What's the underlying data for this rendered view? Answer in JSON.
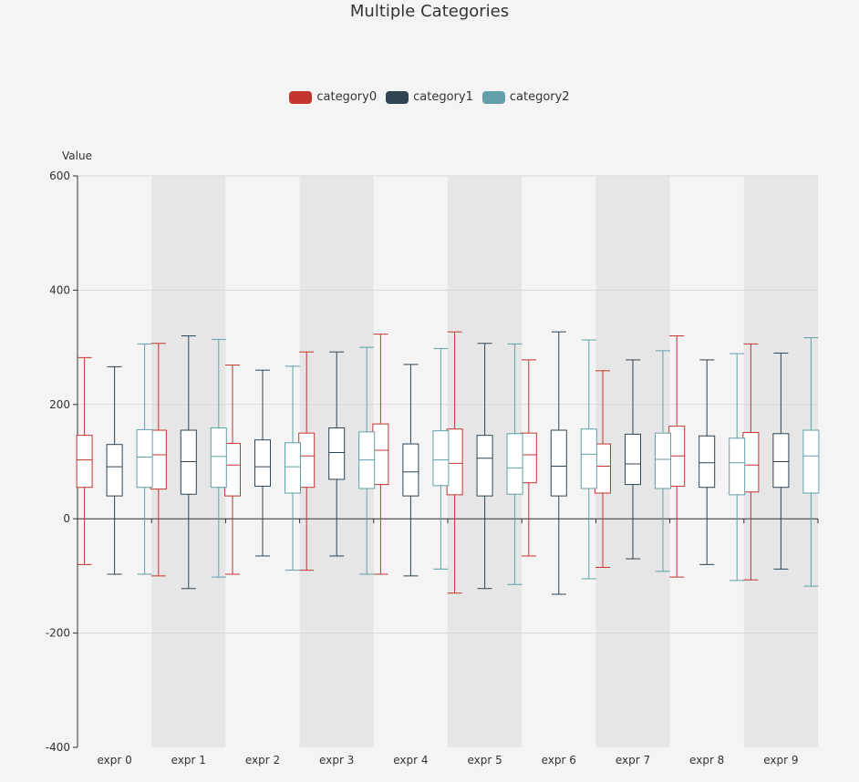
{
  "chart_data": {
    "type": "boxplot",
    "title": "Multiple Categories",
    "ylabel": "Value",
    "xlabel": "",
    "ylim": [
      -400,
      600
    ],
    "yticks": [
      "600",
      "400",
      "200",
      "0",
      "-200",
      "-400"
    ],
    "categories": [
      "expr 0",
      "expr 1",
      "expr 2",
      "expr 3",
      "expr 4",
      "expr 5",
      "expr 6",
      "expr 7",
      "expr 8",
      "expr 9"
    ],
    "grid": true,
    "legend_position": "top-center",
    "series": [
      {
        "name": "category0",
        "color": "#c23531",
        "boxes": [
          {
            "min": -80,
            "q1": 55,
            "median": 103,
            "q3": 146,
            "max": 282
          },
          {
            "min": -100,
            "q1": 52,
            "median": 112,
            "q3": 155,
            "max": 307
          },
          {
            "min": -97,
            "q1": 40,
            "median": 94,
            "q3": 132,
            "max": 269
          },
          {
            "min": -90,
            "q1": 55,
            "median": 110,
            "q3": 150,
            "max": 292
          },
          {
            "min": -97,
            "q1": 60,
            "median": 120,
            "q3": 166,
            "max": 323
          },
          {
            "min": -130,
            "q1": 42,
            "median": 97,
            "q3": 157,
            "max": 327
          },
          {
            "min": -65,
            "q1": 63,
            "median": 112,
            "q3": 150,
            "max": 278
          },
          {
            "min": -85,
            "q1": 45,
            "median": 92,
            "q3": 131,
            "max": 259
          },
          {
            "min": -102,
            "q1": 57,
            "median": 110,
            "q3": 162,
            "max": 320
          },
          {
            "min": -107,
            "q1": 47,
            "median": 94,
            "q3": 151,
            "max": 306
          }
        ]
      },
      {
        "name": "category1",
        "color": "#2f4554",
        "boxes": [
          {
            "min": -97,
            "q1": 40,
            "median": 91,
            "q3": 130,
            "max": 266
          },
          {
            "min": -122,
            "q1": 43,
            "median": 100,
            "q3": 155,
            "max": 320
          },
          {
            "min": -65,
            "q1": 57,
            "median": 91,
            "q3": 138,
            "max": 260
          },
          {
            "min": -65,
            "q1": 69,
            "median": 116,
            "q3": 159,
            "max": 292
          },
          {
            "min": -100,
            "q1": 40,
            "median": 82,
            "q3": 131,
            "max": 270
          },
          {
            "min": -122,
            "q1": 40,
            "median": 106,
            "q3": 146,
            "max": 307
          },
          {
            "min": -132,
            "q1": 40,
            "median": 92,
            "q3": 155,
            "max": 327
          },
          {
            "min": -70,
            "q1": 60,
            "median": 96,
            "q3": 148,
            "max": 278
          },
          {
            "min": -80,
            "q1": 55,
            "median": 98,
            "q3": 145,
            "max": 278
          },
          {
            "min": -88,
            "q1": 55,
            "median": 100,
            "q3": 149,
            "max": 290
          }
        ]
      },
      {
        "name": "category2",
        "color": "#61a0a8",
        "boxes": [
          {
            "min": -97,
            "q1": 55,
            "median": 108,
            "q3": 156,
            "max": 306
          },
          {
            "min": -102,
            "q1": 55,
            "median": 109,
            "q3": 159,
            "max": 314
          },
          {
            "min": -90,
            "q1": 45,
            "median": 91,
            "q3": 133,
            "max": 267
          },
          {
            "min": -97,
            "q1": 53,
            "median": 103,
            "q3": 152,
            "max": 300
          },
          {
            "min": -88,
            "q1": 58,
            "median": 103,
            "q3": 154,
            "max": 298
          },
          {
            "min": -115,
            "q1": 43,
            "median": 89,
            "q3": 149,
            "max": 306
          },
          {
            "min": -105,
            "q1": 53,
            "median": 113,
            "q3": 157,
            "max": 313
          },
          {
            "min": -92,
            "q1": 53,
            "median": 104,
            "q3": 150,
            "max": 294
          },
          {
            "min": -108,
            "q1": 42,
            "median": 98,
            "q3": 141,
            "max": 289
          },
          {
            "min": -118,
            "q1": 45,
            "median": 110,
            "q3": 155,
            "max": 317
          }
        ]
      }
    ]
  },
  "colors": {
    "background": "#f4f4f4",
    "band_light": "#f4f4f4",
    "band_dark": "#e6e6e6",
    "axis": "#333333",
    "grid": "#d8d8d8"
  }
}
